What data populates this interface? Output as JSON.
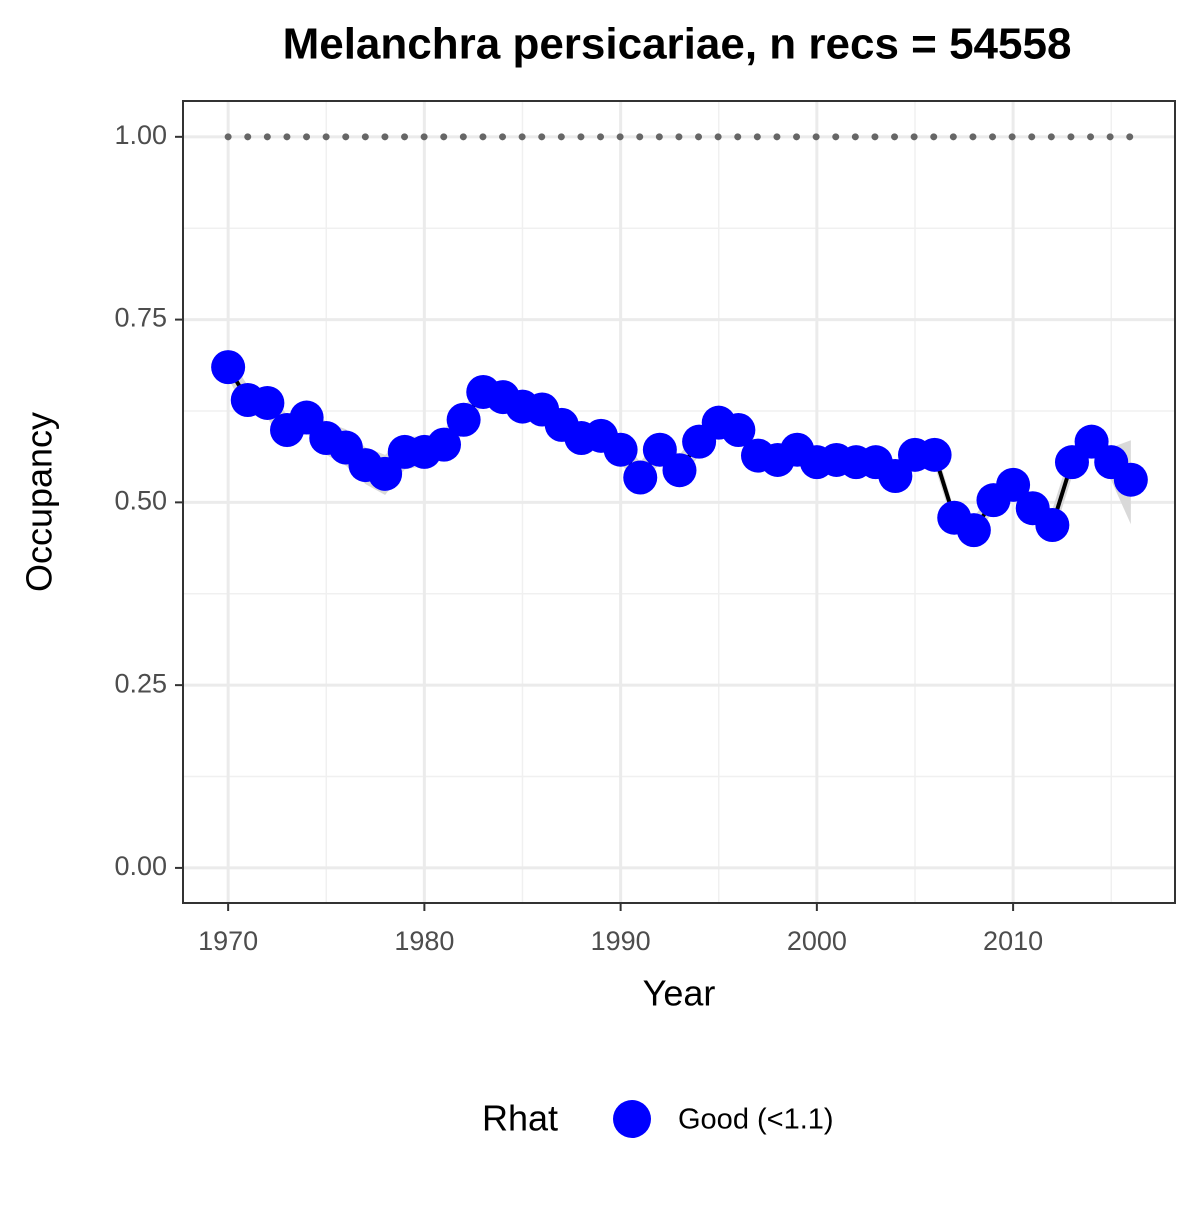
{
  "chart_data": {
    "type": "line",
    "title": "Melanchra persicariae, n recs = 54558",
    "x_label": "Year",
    "y_label": "Occupancy",
    "x": [
      1970,
      1971,
      1972,
      1973,
      1974,
      1975,
      1976,
      1977,
      1978,
      1979,
      1980,
      1981,
      1982,
      1983,
      1984,
      1985,
      1986,
      1987,
      1988,
      1989,
      1990,
      1991,
      1992,
      1993,
      1994,
      1995,
      1996,
      1997,
      1998,
      1999,
      2000,
      2001,
      2002,
      2003,
      2004,
      2005,
      2006,
      2007,
      2008,
      2009,
      2010,
      2011,
      2012,
      2013,
      2014,
      2015,
      2016
    ],
    "series": [
      {
        "name": "Good (<1.1)",
        "color": "#0000ff",
        "values": [
          0.685,
          0.64,
          0.636,
          0.599,
          0.616,
          0.588,
          0.575,
          0.551,
          0.539,
          0.569,
          0.569,
          0.579,
          0.613,
          0.651,
          0.644,
          0.631,
          0.627,
          0.606,
          0.588,
          0.591,
          0.572,
          0.534,
          0.572,
          0.544,
          0.583,
          0.609,
          0.599,
          0.564,
          0.558,
          0.572,
          0.555,
          0.558,
          0.555,
          0.555,
          0.536,
          0.565,
          0.565,
          0.479,
          0.462,
          0.503,
          0.524,
          0.492,
          0.469,
          0.555,
          0.583,
          0.555,
          0.531
        ],
        "lower": [
          0.67,
          0.62,
          0.615,
          0.575,
          0.595,
          0.565,
          0.55,
          0.525,
          0.51,
          0.545,
          0.55,
          0.56,
          0.595,
          0.635,
          0.63,
          0.615,
          0.61,
          0.59,
          0.57,
          0.575,
          0.555,
          0.515,
          0.555,
          0.525,
          0.565,
          0.595,
          0.585,
          0.55,
          0.545,
          0.56,
          0.54,
          0.545,
          0.54,
          0.54,
          0.52,
          0.55,
          0.55,
          0.465,
          0.445,
          0.49,
          0.51,
          0.475,
          0.45,
          0.535,
          0.565,
          0.53,
          0.47
        ],
        "upper": [
          0.7,
          0.66,
          0.655,
          0.62,
          0.635,
          0.61,
          0.6,
          0.575,
          0.565,
          0.59,
          0.59,
          0.6,
          0.63,
          0.665,
          0.66,
          0.645,
          0.645,
          0.62,
          0.605,
          0.605,
          0.59,
          0.555,
          0.59,
          0.565,
          0.6,
          0.625,
          0.615,
          0.58,
          0.575,
          0.585,
          0.57,
          0.57,
          0.57,
          0.57,
          0.55,
          0.58,
          0.58,
          0.49,
          0.48,
          0.515,
          0.54,
          0.51,
          0.49,
          0.575,
          0.6,
          0.575,
          0.585
        ]
      }
    ],
    "line_color": "#000000",
    "band_color": "#d9d9d9",
    "reference_line": {
      "y": 1,
      "color": "#666666"
    },
    "legend_title": "Rhat",
    "legend_position": "bottom",
    "xlim": [
      1967.7,
      2018.25
    ],
    "ylim": [
      -0.048,
      1.049
    ],
    "xticks": [
      1970,
      1980,
      1990,
      2000,
      2010
    ],
    "yticks": [
      {
        "value": 0,
        "label": "0.00"
      },
      {
        "value": 0.25,
        "label": "0.25"
      },
      {
        "value": 0.5,
        "label": "0.50"
      },
      {
        "value": 0.75,
        "label": "0.75"
      },
      {
        "value": 1,
        "label": "1.00"
      }
    ],
    "grid": true,
    "minor_grid": true
  }
}
